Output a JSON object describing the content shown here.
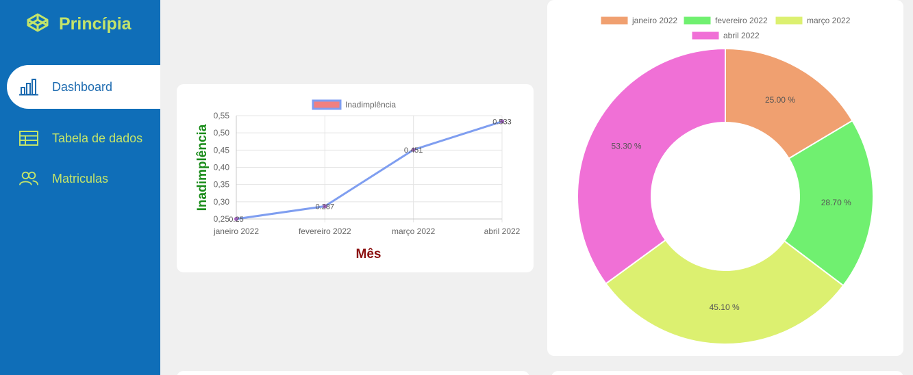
{
  "sidebar": {
    "brand": "Princípia",
    "items": [
      {
        "label": "Dashboard",
        "active": true,
        "icon": "bar-chart-icon"
      },
      {
        "label": "Tabela de dados",
        "active": false,
        "icon": "table-icon"
      },
      {
        "label": "Matriculas",
        "active": false,
        "icon": "users-icon"
      }
    ]
  },
  "colors": {
    "sidebar_bg": "#0f6eb8",
    "sidebar_text": "#c3e46a",
    "active_text": "#1d6bb0"
  },
  "chart_data": [
    {
      "type": "line",
      "categories": [
        "janeiro 2022",
        "fevereiro 2022",
        "março 2022",
        "abril 2022"
      ],
      "series": [
        {
          "name": "Inadimplência",
          "values": [
            0.25,
            0.287,
            0.451,
            0.533
          ],
          "color": "#7f9ef0",
          "legend_fill": "#f08080"
        }
      ],
      "data_labels": [
        "0.25",
        "0.287",
        "0.451",
        "0.533"
      ],
      "xlabel": "Mês",
      "ylabel": "Inadimplência",
      "ylim": [
        0.25,
        0.55
      ],
      "yticks": [
        "0,25",
        "0,30",
        "0,35",
        "0,40",
        "0,45",
        "0,50",
        "0,55"
      ],
      "grid": true,
      "legend": "top"
    },
    {
      "type": "pie",
      "donut": true,
      "categories": [
        "janeiro 2022",
        "fevereiro 2022",
        "março 2022",
        "abril 2022"
      ],
      "values": [
        25.0,
        28.7,
        45.1,
        53.3
      ],
      "labels": [
        "25.00 %",
        "28.70 %",
        "45.10 %",
        "53.30 %"
      ],
      "colors": [
        "#f0a070",
        "#70f070",
        "#dcf070",
        "#f070d6"
      ],
      "legend": "top"
    }
  ]
}
